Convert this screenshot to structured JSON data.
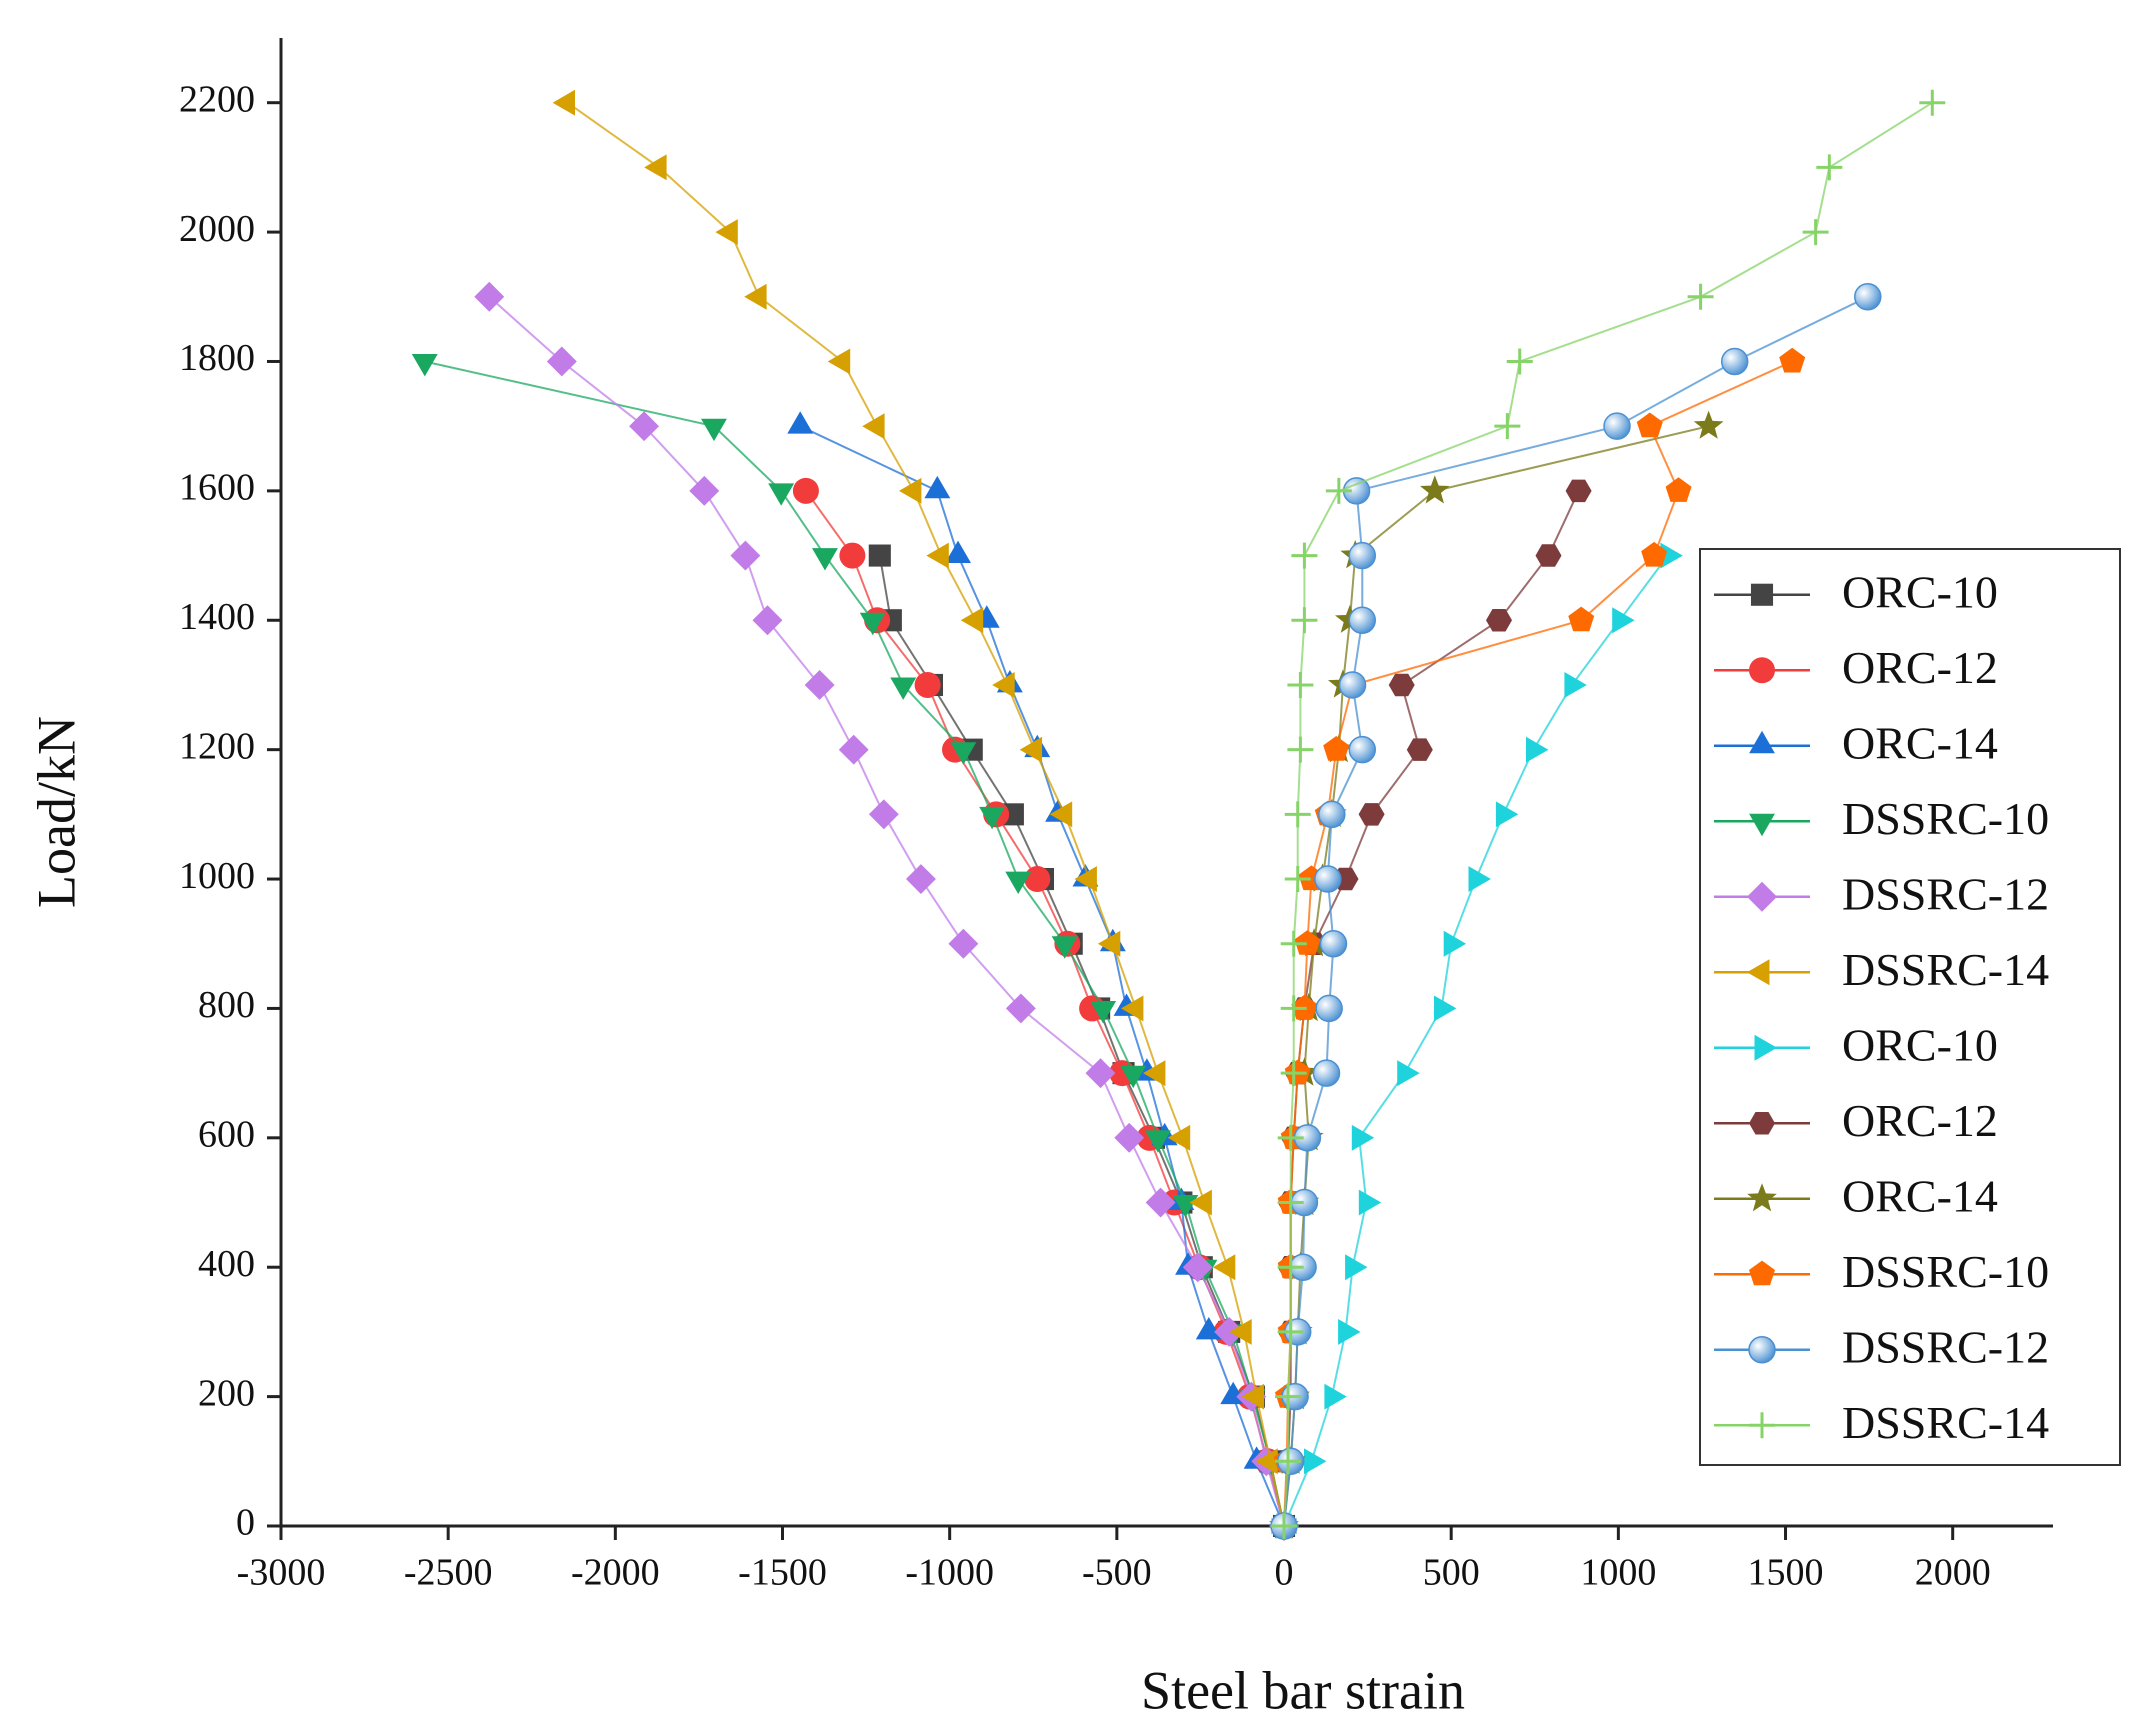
{
  "chart_data": {
    "type": "scatter-line",
    "x_label": "Steel bar strain",
    "y_label": "Load/kN",
    "xlim": [
      -3000,
      2300
    ],
    "ylim": [
      0,
      2300
    ],
    "xticks": [
      -3000,
      -2500,
      -2000,
      -1500,
      -1000,
      -500,
      0,
      500,
      1000,
      1500,
      2000
    ],
    "yticks": [
      0,
      200,
      400,
      600,
      800,
      1000,
      1200,
      1400,
      1600,
      1800,
      2000,
      2200
    ],
    "legend": "right",
    "series": [
      {
        "name": "ORC-10",
        "color": "#444444",
        "marker": "square",
        "y": [
          0,
          100,
          200,
          300,
          400,
          500,
          600,
          700,
          800,
          900,
          1000,
          1100,
          1200,
          1300,
          1400,
          1500
        ],
        "x": [
          0,
          -41,
          -90,
          -164,
          -246,
          -307,
          -389,
          -480,
          -553,
          -635,
          -721,
          -811,
          -934,
          -1053,
          -1176,
          -1209
        ]
      },
      {
        "name": "ORC-12",
        "color": "#f23b3b",
        "marker": "circle",
        "y": [
          0,
          100,
          200,
          300,
          400,
          500,
          600,
          700,
          800,
          900,
          1000,
          1100,
          1200,
          1300,
          1400,
          1500,
          1600
        ],
        "x": [
          0,
          -49,
          -102,
          -172,
          -254,
          -328,
          -402,
          -484,
          -574,
          -648,
          -738,
          -861,
          -984,
          -1066,
          -1217,
          -1291,
          -1430
        ]
      },
      {
        "name": "ORC-14",
        "color": "#1d6fd8",
        "marker": "triangle-up",
        "y": [
          0,
          100,
          200,
          300,
          400,
          500,
          600,
          700,
          800,
          900,
          1000,
          1100,
          1200,
          1300,
          1400,
          1500,
          1600,
          1700
        ],
        "x": [
          0,
          -82,
          -152,
          -225,
          -287,
          -307,
          -357,
          -410,
          -471,
          -512,
          -594,
          -676,
          -738,
          -820,
          -889,
          -975,
          -1037,
          -1447
        ]
      },
      {
        "name": "DSSRC-10",
        "color": "#1aa860",
        "marker": "triangle-down",
        "y": [
          0,
          100,
          200,
          300,
          400,
          500,
          600,
          700,
          800,
          900,
          1000,
          1100,
          1200,
          1300,
          1400,
          1500,
          1600,
          1700,
          1800
        ],
        "x": [
          0,
          -41,
          -94,
          -152,
          -238,
          -295,
          -377,
          -451,
          -541,
          -656,
          -795,
          -873,
          -959,
          -1139,
          -1230,
          -1373,
          -1504,
          -1705,
          -2570
        ]
      },
      {
        "name": "DSSRC-12",
        "color": "#c27ce8",
        "marker": "diamond",
        "y": [
          0,
          100,
          200,
          300,
          400,
          500,
          600,
          700,
          800,
          900,
          1000,
          1100,
          1200,
          1300,
          1400,
          1500,
          1600,
          1700,
          1800,
          1900
        ],
        "x": [
          0,
          -53,
          -98,
          -164,
          -258,
          -369,
          -463,
          -549,
          -787,
          -959,
          -1086,
          -1197,
          -1287,
          -1389,
          -1545,
          -1611,
          -1734,
          -1914,
          -2160,
          -2377
        ]
      },
      {
        "name": "DSSRC-14",
        "color": "#d6a000",
        "marker": "triangle-left",
        "y": [
          0,
          100,
          200,
          300,
          400,
          500,
          600,
          700,
          800,
          900,
          1000,
          1100,
          1200,
          1300,
          1400,
          1500,
          1600,
          1700,
          1800,
          1900,
          2000,
          2100,
          2200
        ],
        "x": [
          0,
          -41,
          -82,
          -119,
          -168,
          -238,
          -303,
          -377,
          -443,
          -512,
          -582,
          -656,
          -746,
          -828,
          -922,
          -1025,
          -1107,
          -1217,
          -1320,
          -1570,
          -1656,
          -1869,
          -2143
        ]
      },
      {
        "name": "ORC-10",
        "color": "#1fd3dc",
        "marker": "triangle-right",
        "y": [
          0,
          100,
          200,
          300,
          400,
          500,
          600,
          700,
          800,
          900,
          1000,
          1100,
          1200,
          1300,
          1400,
          1500
        ],
        "x": [
          0,
          82,
          143,
          184,
          205,
          246,
          225,
          361,
          471,
          500,
          574,
          656,
          746,
          861,
          1004,
          1148
        ]
      },
      {
        "name": "ORC-12",
        "color": "#7d3b3b",
        "marker": "hexagon",
        "y": [
          0,
          100,
          200,
          300,
          400,
          500,
          600,
          700,
          800,
          900,
          1000,
          1100,
          1200,
          1300,
          1400,
          1500,
          1600
        ],
        "x": [
          0,
          12,
          20,
          20,
          20,
          20,
          29,
          41,
          61,
          90,
          184,
          262,
          406,
          352,
          643,
          791,
          881
        ]
      },
      {
        "name": "ORC-14",
        "color": "#7b7b1c",
        "marker": "star",
        "y": [
          0,
          100,
          200,
          300,
          400,
          500,
          600,
          700,
          800,
          900,
          1000,
          1100,
          1200,
          1300,
          1400,
          1500,
          1600,
          1700
        ],
        "x": [
          0,
          20,
          33,
          41,
          49,
          61,
          74,
          61,
          74,
          90,
          115,
          143,
          164,
          176,
          197,
          213,
          451,
          1270
        ]
      },
      {
        "name": "DSSRC-10",
        "color": "#ff6a00",
        "marker": "pentagon",
        "y": [
          0,
          100,
          200,
          300,
          400,
          500,
          600,
          700,
          800,
          900,
          1000,
          1100,
          1200,
          1300,
          1400,
          1500,
          1600,
          1700,
          1800
        ],
        "x": [
          0,
          8,
          12,
          20,
          20,
          20,
          29,
          41,
          61,
          70,
          82,
          131,
          156,
          205,
          889,
          1107,
          1180,
          1094,
          1520
        ]
      },
      {
        "name": "DSSRC-12",
        "color": "#4a90d2",
        "marker": "sphere",
        "y": [
          0,
          100,
          200,
          300,
          400,
          500,
          600,
          700,
          800,
          900,
          1000,
          1100,
          1200,
          1300,
          1400,
          1500,
          1600,
          1700,
          1800,
          1900
        ],
        "x": [
          0,
          20,
          33,
          41,
          57,
          61,
          70,
          127,
          135,
          148,
          131,
          143,
          234,
          205,
          234,
          234,
          217,
          996,
          1348,
          1746
        ]
      },
      {
        "name": "DSSRC-14",
        "color": "#86d468",
        "marker": "plus",
        "y": [
          0,
          100,
          200,
          300,
          400,
          500,
          600,
          700,
          800,
          900,
          1000,
          1100,
          1200,
          1300,
          1400,
          1500,
          1600,
          1700,
          1800,
          1900,
          2000,
          2100,
          2200
        ],
        "x": [
          0,
          12,
          12,
          20,
          20,
          20,
          20,
          29,
          29,
          29,
          41,
          41,
          49,
          49,
          61,
          61,
          164,
          668,
          705,
          1246,
          1590,
          1631,
          1939
        ]
      }
    ]
  }
}
